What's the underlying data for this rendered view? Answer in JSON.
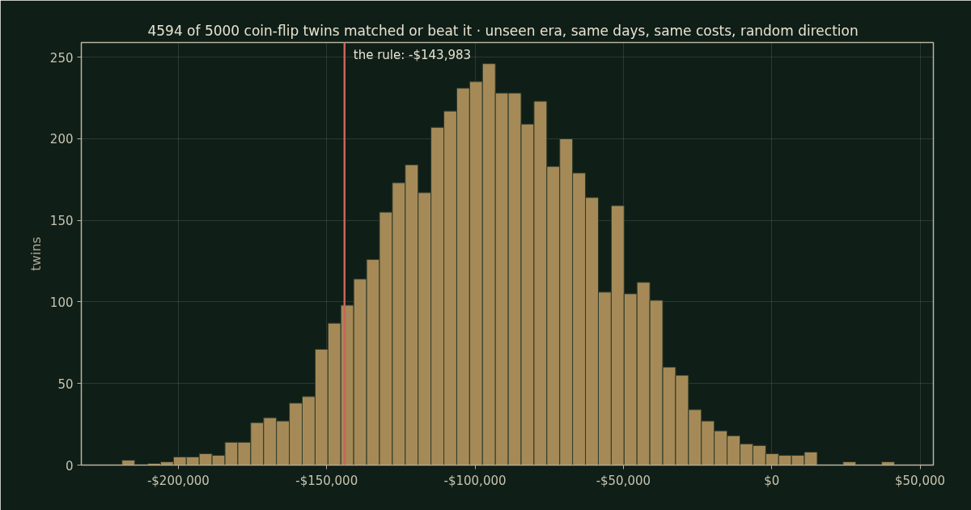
{
  "chart_data": {
    "type": "histogram",
    "title": "4594 of 5000 coin-flip twins matched or beat it  ·  unseen era, same days, same costs, random direction",
    "ylabel": "twins",
    "bins": [
      -219000,
      -214660,
      -210320,
      -205980,
      -201640,
      -197300,
      -192960,
      -188620,
      -184280,
      -179940,
      -175600,
      -171260,
      -166920,
      -162580,
      -158240,
      -153900,
      -149560,
      -145220,
      -140880,
      -136540,
      -132200,
      -127860,
      -123520,
      -119180,
      -114840,
      -110500,
      -106160,
      -101820,
      -97480,
      -93140,
      -88800,
      -84460,
      -80120,
      -75780,
      -71440,
      -67100,
      -62760,
      -58420,
      -54080,
      -49740,
      -45400,
      -41060,
      -36720,
      -32380,
      -28040,
      -23700,
      -19360,
      -15020,
      -10680,
      -6340,
      -2000,
      2340,
      6680,
      11020,
      15360,
      19700,
      24040,
      28380,
      32720,
      37060,
      41400
    ],
    "values": [
      3,
      0,
      1,
      2,
      5,
      5,
      7,
      6,
      14,
      14,
      26,
      29,
      27,
      38,
      42,
      71,
      87,
      98,
      114,
      126,
      155,
      173,
      184,
      167,
      207,
      217,
      231,
      235,
      246,
      228,
      228,
      209,
      223,
      183,
      200,
      179,
      164,
      106,
      159,
      105,
      112,
      101,
      60,
      55,
      34,
      27,
      21,
      18,
      13,
      12,
      7,
      6,
      6,
      8,
      0,
      0,
      2,
      0,
      0,
      2
    ],
    "color": "#a58a58",
    "xlim": [
      -232700,
      54500
    ],
    "ylim": [
      0,
      259
    ],
    "xticks": [
      {
        "value": -200000,
        "label": "-$200,000"
      },
      {
        "value": -150000,
        "label": "-$150,000"
      },
      {
        "value": -100000,
        "label": "-$100,000"
      },
      {
        "value": -50000,
        "label": "-$50,000"
      },
      {
        "value": 0,
        "label": "$0"
      },
      {
        "value": 50000,
        "label": "$50,000"
      }
    ],
    "yticks": [
      0,
      50,
      100,
      150,
      200,
      250
    ],
    "grid": true,
    "ref_lines": [
      {
        "axis": "x",
        "value": -143983,
        "label": "the rule: -$143,983",
        "color": "#c8645a"
      }
    ]
  }
}
